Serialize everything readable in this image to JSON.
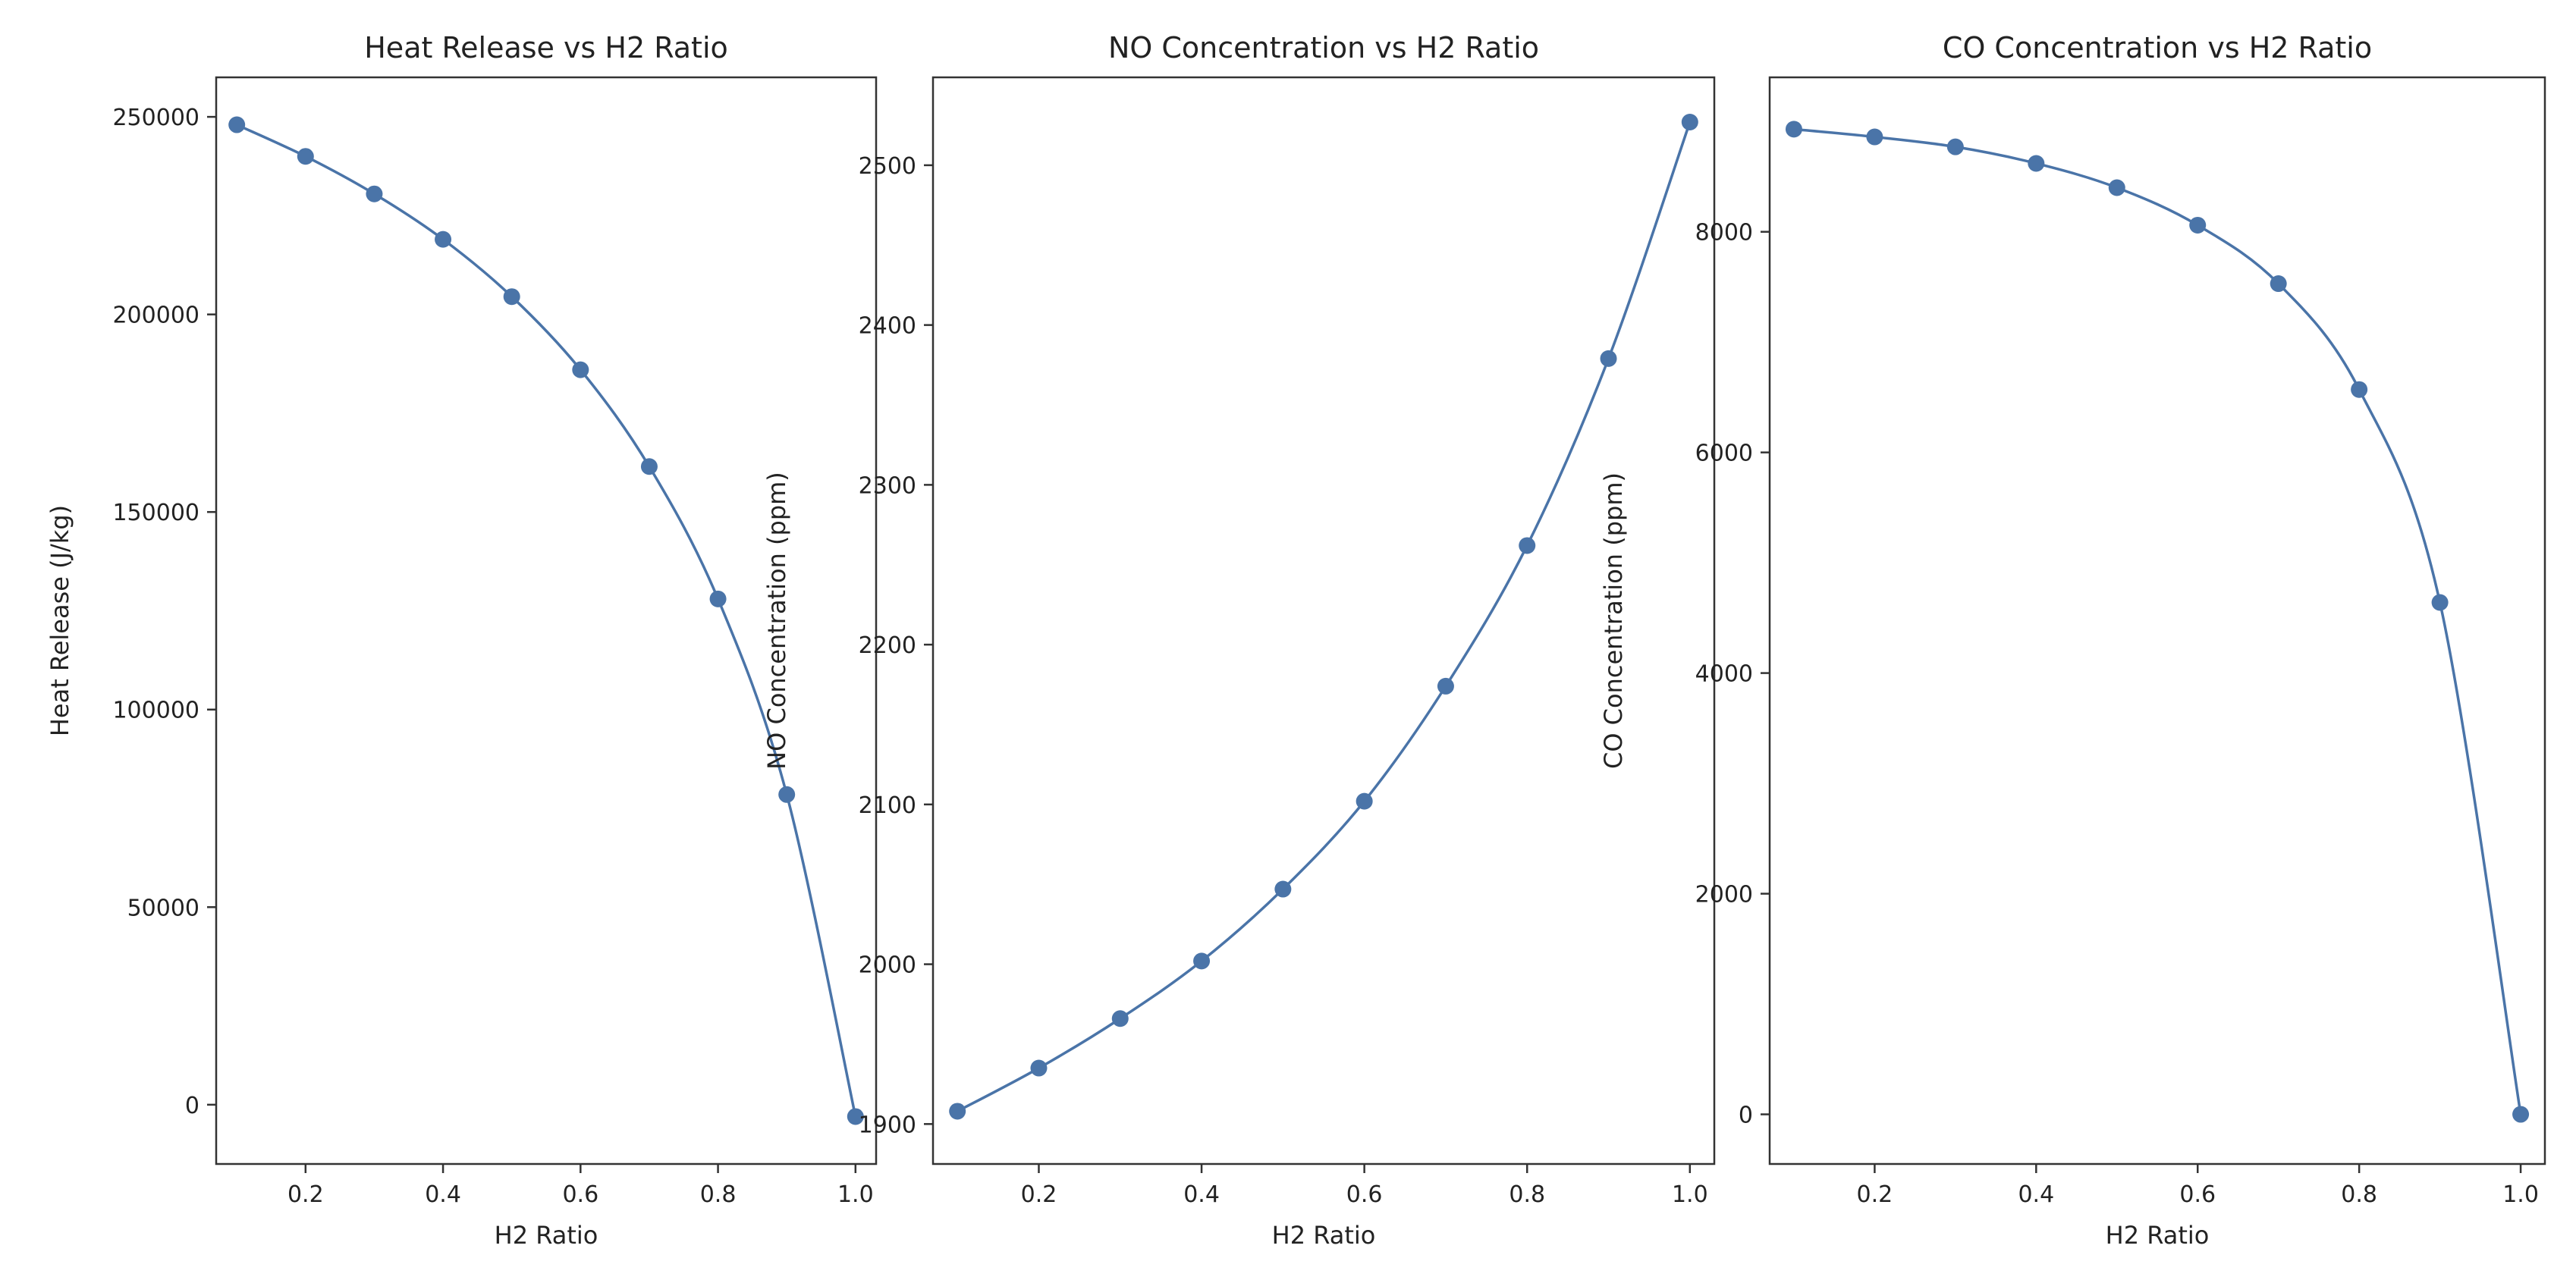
{
  "chart_data": [
    {
      "type": "line",
      "title": "Heat Release vs H2 Ratio",
      "xlabel": "H2 Ratio",
      "ylabel": "Heat Release (J/kg)",
      "xlim": [
        0.07,
        1.03
      ],
      "ylim": [
        -15000,
        260000
      ],
      "xticks": [
        0.2,
        0.4,
        0.6,
        0.8,
        1.0
      ],
      "xtick_labels": [
        "0.2",
        "0.4",
        "0.6",
        "0.8",
        "1.0"
      ],
      "yticks": [
        0,
        50000,
        100000,
        150000,
        200000,
        250000
      ],
      "ytick_labels": [
        "0",
        "50000",
        "100000",
        "150000",
        "200000",
        "250000"
      ],
      "grid": false,
      "series": [
        {
          "color": "#4a74a8",
          "marker": "circle",
          "x": [
            0.1,
            0.2,
            0.3,
            0.4,
            0.5,
            0.6,
            0.7,
            0.8,
            0.9,
            1.0
          ],
          "y": [
            248000,
            240000,
            230500,
            219000,
            204500,
            186000,
            161500,
            128000,
            78500,
            -3000
          ]
        }
      ]
    },
    {
      "type": "line",
      "title": "NO Concentration vs H2 Ratio",
      "xlabel": "H2 Ratio",
      "ylabel": "NO Concentration (ppm)",
      "xlim": [
        0.07,
        1.03
      ],
      "ylim": [
        1875,
        2555
      ],
      "xticks": [
        0.2,
        0.4,
        0.6,
        0.8,
        1.0
      ],
      "xtick_labels": [
        "0.2",
        "0.4",
        "0.6",
        "0.8",
        "1.0"
      ],
      "yticks": [
        1900,
        2000,
        2100,
        2200,
        2300,
        2400,
        2500
      ],
      "ytick_labels": [
        "1900",
        "2000",
        "2100",
        "2200",
        "2300",
        "2400",
        "2500"
      ],
      "grid": false,
      "series": [
        {
          "color": "#4a74a8",
          "marker": "circle",
          "x": [
            0.1,
            0.2,
            0.3,
            0.4,
            0.5,
            0.6,
            0.7,
            0.8,
            0.9,
            1.0
          ],
          "y": [
            1908,
            1935,
            1966,
            2002,
            2047,
            2102,
            2174,
            2262,
            2379,
            2527
          ]
        }
      ]
    },
    {
      "type": "line",
      "title": "CO Concentration vs H2 Ratio",
      "xlabel": "H2 Ratio",
      "ylabel": "CO Concentration (ppm)",
      "xlim": [
        0.07,
        1.03
      ],
      "ylim": [
        -450,
        9400
      ],
      "xticks": [
        0.2,
        0.4,
        0.6,
        0.8,
        1.0
      ],
      "xtick_labels": [
        "0.2",
        "0.4",
        "0.6",
        "0.8",
        "1.0"
      ],
      "yticks": [
        0,
        2000,
        4000,
        6000,
        8000
      ],
      "ytick_labels": [
        "0",
        "2000",
        "4000",
        "6000",
        "8000"
      ],
      "grid": false,
      "series": [
        {
          "color": "#4a74a8",
          "marker": "circle",
          "x": [
            0.1,
            0.2,
            0.3,
            0.4,
            0.5,
            0.6,
            0.7,
            0.8,
            0.9,
            1.0
          ],
          "y": [
            8930,
            8860,
            8770,
            8620,
            8400,
            8060,
            7530,
            6570,
            4640,
            0
          ]
        }
      ]
    }
  ]
}
